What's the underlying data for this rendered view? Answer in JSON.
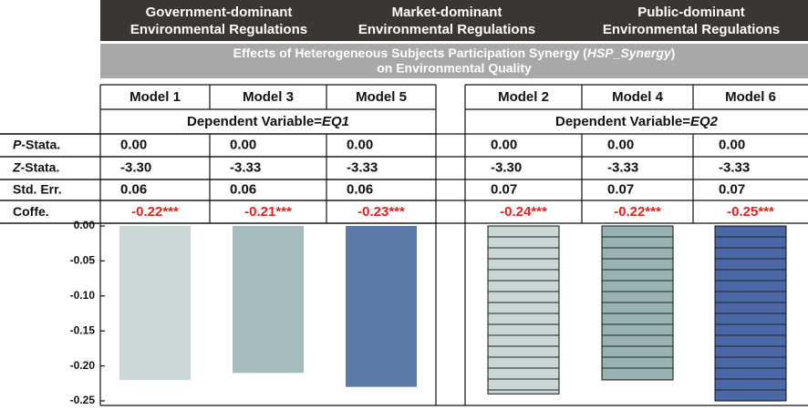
{
  "chart_data": {
    "type": "bar",
    "groups": [
      [
        "Government-dominant",
        "Environmental Regulations"
      ],
      [
        "Market-dominant",
        "Environmental Regulations"
      ],
      [
        "Public-dominant",
        "Environmental Regulations"
      ]
    ],
    "title": [
      "Effects of Heterogeneous Subjects Participation Synergy (",
      "HSP_Synergy",
      ")",
      "on Environmental Quality"
    ],
    "categories": [
      "Model 1",
      "Model 3",
      "Model 5",
      "Model 2",
      "Model 4",
      "Model 6"
    ],
    "dependent": [
      [
        "Dependent Variable=",
        "EQ1"
      ],
      [
        "Dependent Variable=",
        "EQ2"
      ]
    ],
    "rows": [
      {
        "label": [
          "P",
          "-Stata."
        ],
        "cells": [
          "0.00",
          "0.00",
          "0.00",
          "0.00",
          "0.00",
          "0.00"
        ]
      },
      {
        "label": [
          "Z",
          "-Stata."
        ],
        "cells": [
          "-3.30",
          "-3.33",
          "-3.33",
          "-3.30",
          "-3.33",
          "-3.33"
        ]
      },
      {
        "label": [
          "Std. Err."
        ],
        "cells": [
          "0.06",
          "0.06",
          "0.06",
          "0.07",
          "0.07",
          "0.07"
        ]
      }
    ],
    "values_label": [
      "Coffe."
    ],
    "values": [
      -0.22,
      -0.21,
      -0.23,
      -0.24,
      -0.22,
      -0.25
    ],
    "value_labels": [
      "-0.22***",
      "-0.21***",
      "-0.23***",
      "-0.24***",
      "-0.22***",
      "-0.25***"
    ],
    "colors": [
      "#c9d7d7",
      "#a5bbbd",
      "#5b7aa8",
      "#c9d7d7",
      "#98b1b1",
      "#4a68a6"
    ],
    "hatched": [
      false,
      false,
      false,
      true,
      true,
      true
    ],
    "ylim": [
      -0.25,
      0
    ],
    "yticks": [
      {
        "value": 0,
        "label": "0.00"
      },
      {
        "value": -0.05,
        "label": "-0.05"
      },
      {
        "value": -0.1,
        "label": "-0.10"
      },
      {
        "value": -0.15,
        "label": "-0.15"
      },
      {
        "value": -0.2,
        "label": "-0.20"
      },
      {
        "value": -0.25,
        "label": "-0.25"
      }
    ]
  }
}
